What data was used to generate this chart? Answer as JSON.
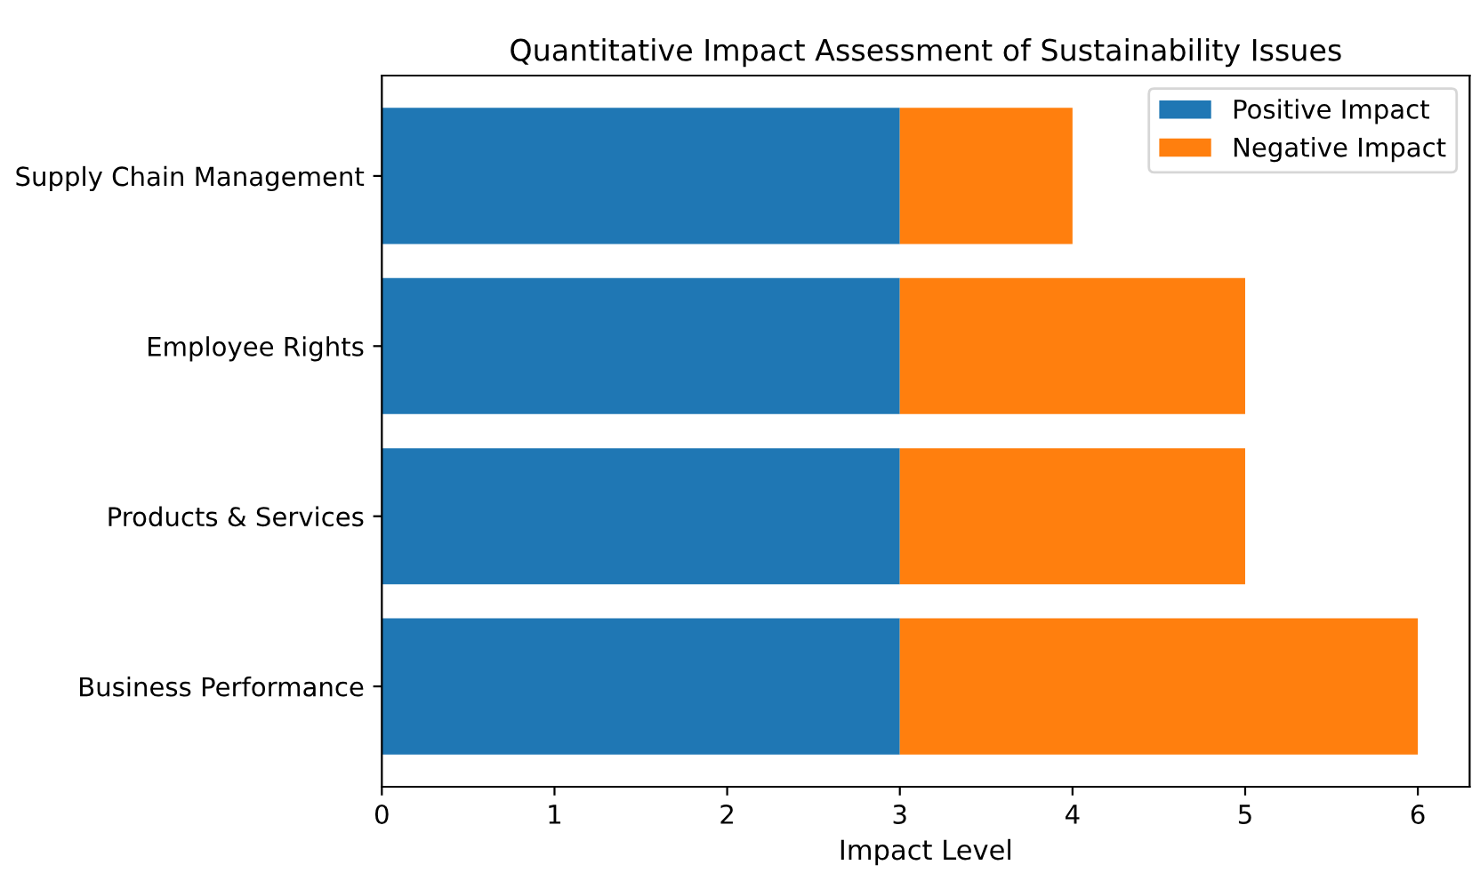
{
  "chart_data": {
    "type": "bar",
    "orientation": "horizontal",
    "stacked": true,
    "title": "Quantitative Impact Assessment of Sustainability Issues",
    "xlabel": "Impact Level",
    "categories": [
      "Supply Chain Management",
      "Employee Rights",
      "Products & Services",
      "Business Performance"
    ],
    "series": [
      {
        "name": "Positive Impact",
        "color": "#1f77b4",
        "values": [
          3,
          3,
          3,
          3
        ]
      },
      {
        "name": "Negative Impact",
        "color": "#ff7f0e",
        "values": [
          1,
          2,
          2,
          3
        ]
      }
    ],
    "xlim": [
      0,
      6.3
    ],
    "xticks": [
      0,
      1,
      2,
      3,
      4,
      5,
      6
    ],
    "grid": false,
    "legend": "top right"
  }
}
